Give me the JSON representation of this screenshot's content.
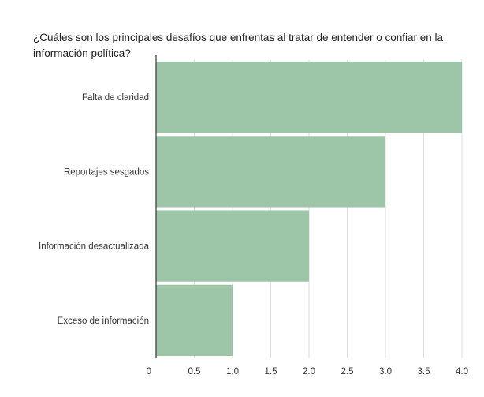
{
  "chart_data": {
    "type": "bar",
    "orientation": "horizontal",
    "title": "¿Cuáles son los principales desafíos que enfrentas al tratar de entender o confiar en la información política?",
    "categories": [
      "Falta de claridad",
      "Reportajes sesgados",
      "Información desactualizada",
      "Exceso de información"
    ],
    "values": [
      4,
      3,
      2,
      1
    ],
    "xlim": [
      0,
      4
    ],
    "xticks": [
      "0",
      "0.5",
      "1.0",
      "1.5",
      "2.0",
      "2.5",
      "3.0",
      "3.5",
      "4.0"
    ],
    "xlabel": "",
    "ylabel": "",
    "grid": true,
    "bar_color": "#9dc5a8"
  }
}
